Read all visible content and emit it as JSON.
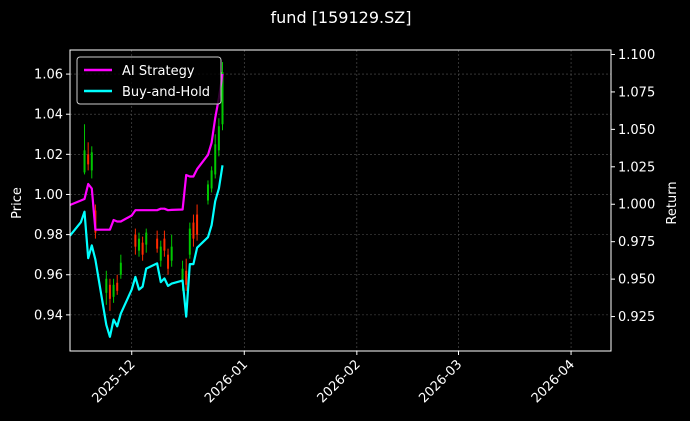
{
  "chart_data": {
    "type": "line",
    "title": "fund [159129.SZ]",
    "xlabel": "",
    "ylabel": "Price",
    "ylabel_right": "Return",
    "x_ticks": [
      "2025-12",
      "2026-01",
      "2026-02",
      "2026-03",
      "2026-04"
    ],
    "x_range": [
      "2025-11-14",
      "2026-04-12"
    ],
    "ylim": [
      0.922,
      1.072
    ],
    "ylim_right": [
      0.902,
      1.103
    ],
    "y_ticks": [
      0.94,
      0.96,
      0.98,
      1.0,
      1.02,
      1.04,
      1.06
    ],
    "y_ticks_right": [
      0.925,
      0.95,
      0.975,
      1.0,
      1.025,
      1.05,
      1.075,
      1.1
    ],
    "grid": true,
    "legend": "top-left",
    "colors": {
      "ai": "#ff00ff",
      "bh": "#00ffff",
      "up": "#00c800",
      "down": "#ff2a00",
      "background": "#000000",
      "grid": "#555555"
    },
    "series": [
      {
        "name": "AI Strategy",
        "axis": "right",
        "x": [
          "2025-11-14",
          "2025-11-17",
          "2025-11-18",
          "2025-11-19",
          "2025-11-20",
          "2025-11-21",
          "2025-11-24",
          "2025-11-25",
          "2025-11-26",
          "2025-11-27",
          "2025-11-28",
          "2025-12-01",
          "2025-12-02",
          "2025-12-03",
          "2025-12-04",
          "2025-12-05",
          "2025-12-08",
          "2025-12-09",
          "2025-12-10",
          "2025-12-11",
          "2025-12-12",
          "2025-12-15",
          "2025-12-16",
          "2025-12-17",
          "2025-12-18",
          "2025-12-19",
          "2025-12-22",
          "2025-12-23",
          "2025-12-24",
          "2025-12-25",
          "2025-12-26"
        ],
        "values": [
          0.9995,
          1.0025,
          1.0035,
          1.0135,
          1.0105,
          0.983,
          0.983,
          0.983,
          0.9895,
          0.9885,
          0.9885,
          0.9925,
          0.996,
          0.996,
          0.996,
          0.996,
          0.996,
          0.997,
          0.997,
          0.996,
          0.9962,
          0.9965,
          1.0195,
          1.0185,
          1.0185,
          1.0235,
          1.033,
          1.041,
          1.0575,
          1.071,
          1.087
        ]
      },
      {
        "name": "Buy-and-Hold",
        "axis": "right",
        "x": [
          "2025-11-14",
          "2025-11-17",
          "2025-11-18",
          "2025-11-19",
          "2025-11-20",
          "2025-11-21",
          "2025-11-24",
          "2025-11-25",
          "2025-11-26",
          "2025-11-27",
          "2025-11-28",
          "2025-12-01",
          "2025-12-02",
          "2025-12-03",
          "2025-12-04",
          "2025-12-05",
          "2025-12-08",
          "2025-12-09",
          "2025-12-10",
          "2025-12-11",
          "2025-12-12",
          "2025-12-15",
          "2025-12-16",
          "2025-12-17",
          "2025-12-18",
          "2025-12-19",
          "2025-12-22",
          "2025-12-23",
          "2025-12-24",
          "2025-12-25",
          "2025-12-26"
        ],
        "values": [
          0.979,
          0.988,
          0.995,
          0.964,
          0.9725,
          0.963,
          0.9195,
          0.9115,
          0.923,
          0.9185,
          0.927,
          0.943,
          0.9515,
          0.943,
          0.945,
          0.957,
          0.9605,
          0.948,
          0.9505,
          0.9455,
          0.947,
          0.949,
          0.925,
          0.96,
          0.96,
          0.971,
          0.978,
          0.986,
          1.002,
          1.0105,
          1.026
        ]
      }
    ],
    "candles": [
      {
        "date": "2025-11-18",
        "o": 1.011,
        "c": 1.022,
        "h": 1.035,
        "l": 1.01
      },
      {
        "date": "2025-11-19",
        "o": 1.02,
        "c": 1.015,
        "h": 1.026,
        "l": 1.012
      },
      {
        "date": "2025-11-20",
        "o": 1.012,
        "c": 1.021,
        "h": 1.024,
        "l": 1.008
      },
      {
        "date": "2025-11-21",
        "o": 0.992,
        "c": 0.981,
        "h": 0.995,
        "l": 0.978
      },
      {
        "date": "2025-11-24",
        "o": 0.951,
        "c": 0.958,
        "h": 0.962,
        "l": 0.945
      },
      {
        "date": "2025-11-25",
        "o": 0.955,
        "c": 0.948,
        "h": 0.958,
        "l": 0.942
      },
      {
        "date": "2025-11-26",
        "o": 0.949,
        "c": 0.955,
        "h": 0.958,
        "l": 0.946
      },
      {
        "date": "2025-11-27",
        "o": 0.956,
        "c": 0.952,
        "h": 0.96,
        "l": 0.95
      },
      {
        "date": "2025-11-28",
        "o": 0.96,
        "c": 0.966,
        "h": 0.97,
        "l": 0.958
      },
      {
        "date": "2025-12-02",
        "o": 0.98,
        "c": 0.974,
        "h": 0.983,
        "l": 0.97
      },
      {
        "date": "2025-12-03",
        "o": 0.972,
        "c": 0.978,
        "h": 0.981,
        "l": 0.969
      },
      {
        "date": "2025-12-04",
        "o": 0.976,
        "c": 0.97,
        "h": 0.979,
        "l": 0.967
      },
      {
        "date": "2025-12-05",
        "o": 0.975,
        "c": 0.981,
        "h": 0.983,
        "l": 0.971
      },
      {
        "date": "2025-12-08",
        "o": 0.978,
        "c": 0.973,
        "h": 0.982,
        "l": 0.971
      },
      {
        "date": "2025-12-09",
        "o": 0.967,
        "c": 0.974,
        "h": 0.977,
        "l": 0.964
      },
      {
        "date": "2025-12-10",
        "o": 0.978,
        "c": 0.972,
        "h": 0.982,
        "l": 0.969
      },
      {
        "date": "2025-12-11",
        "o": 0.97,
        "c": 0.963,
        "h": 0.973,
        "l": 0.96
      },
      {
        "date": "2025-12-12",
        "o": 0.967,
        "c": 0.974,
        "h": 0.98,
        "l": 0.964
      },
      {
        "date": "2025-12-15",
        "o": 0.956,
        "c": 0.963,
        "h": 0.967,
        "l": 0.952
      },
      {
        "date": "2025-12-16",
        "o": 0.962,
        "c": 0.955,
        "h": 0.968,
        "l": 0.952
      },
      {
        "date": "2025-12-17",
        "o": 0.97,
        "c": 0.983,
        "h": 0.986,
        "l": 0.968
      },
      {
        "date": "2025-12-18",
        "o": 0.986,
        "c": 0.978,
        "h": 0.99,
        "l": 0.974
      },
      {
        "date": "2025-12-19",
        "o": 0.99,
        "c": 0.98,
        "h": 0.995,
        "l": 0.977
      },
      {
        "date": "2025-12-22",
        "o": 0.997,
        "c": 1.005,
        "h": 1.007,
        "l": 0.995
      },
      {
        "date": "2025-12-23",
        "o": 1.003,
        "c": 1.012,
        "h": 1.014,
        "l": 1.001
      },
      {
        "date": "2025-12-24",
        "o": 1.01,
        "c": 1.025,
        "h": 1.03,
        "l": 1.008
      },
      {
        "date": "2025-12-25",
        "o": 1.022,
        "c": 1.034,
        "h": 1.038,
        "l": 1.019
      },
      {
        "date": "2025-12-26",
        "o": 1.035,
        "c": 1.061,
        "h": 1.066,
        "l": 1.032
      }
    ]
  }
}
